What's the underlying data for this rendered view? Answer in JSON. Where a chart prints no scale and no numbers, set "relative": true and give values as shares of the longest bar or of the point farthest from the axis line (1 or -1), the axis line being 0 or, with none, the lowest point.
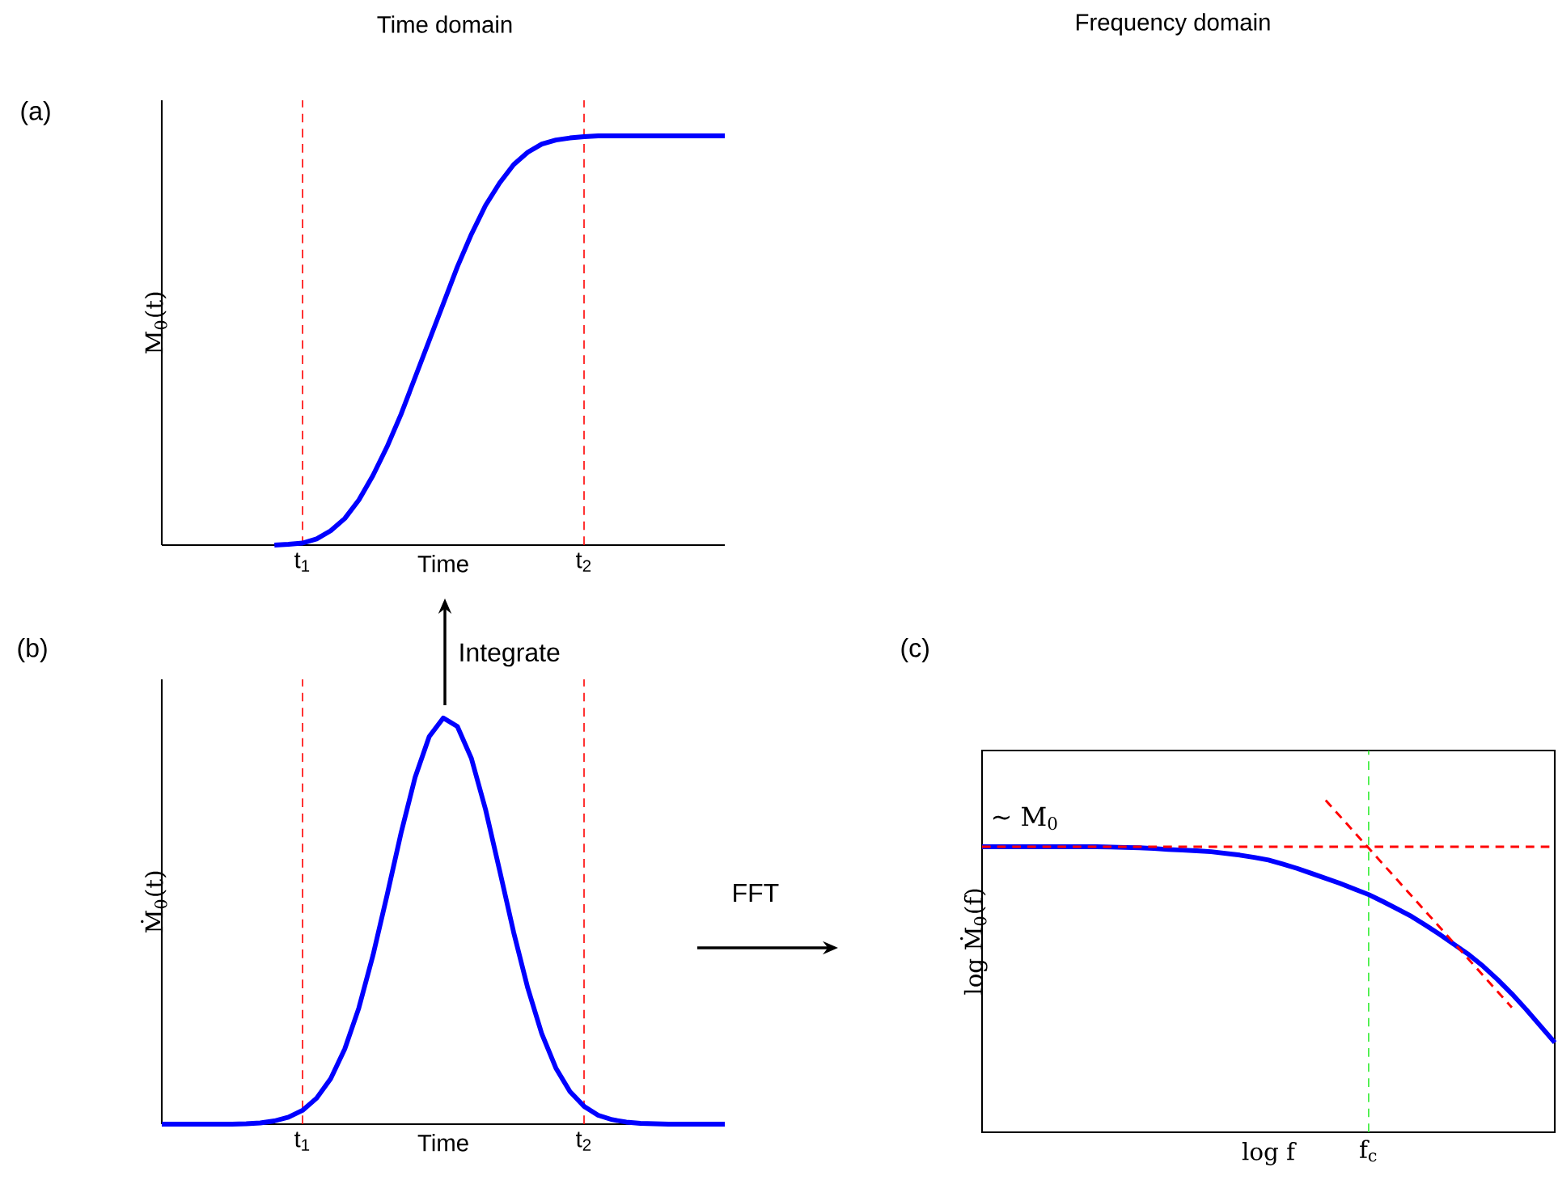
{
  "chart_data": [
    {
      "type": "line",
      "title": "Time domain",
      "ylabel": "M$_{0}$(t)",
      "xlabel": "Time",
      "relative": true,
      "categories": [
        null,
        null,
        null,
        null,
        null,
        null,
        null,
        null,
        null,
        null,
        "t$_{1}$",
        null,
        null,
        null,
        null,
        null,
        null,
        null,
        null,
        null,
        null,
        null,
        null,
        null,
        null,
        null,
        null,
        null,
        null,
        null,
        "t$_{2}$",
        null,
        null,
        null,
        null,
        null,
        null,
        null,
        null,
        null,
        null
      ],
      "ref_lines": [
        {
          "axis": "x",
          "value": "t$_{1}$",
          "color": "#ff0000",
          "line_style": "dashed"
        },
        {
          "axis": "x",
          "value": "t$_{2}$",
          "color": "#ff0000",
          "line_style": "dashed"
        }
      ],
      "annotations": [
        "(a)"
      ],
      "series": [
        {
          "color": "#0000ff",
          "line_style": "solid",
          "values": [
            null,
            null,
            null,
            null,
            null,
            null,
            null,
            null,
            0,
            0.002,
            0.005,
            0.015,
            0.035,
            0.065,
            0.11,
            0.17,
            0.24,
            0.32,
            0.41,
            0.5,
            0.59,
            0.68,
            0.76,
            0.83,
            0.885,
            0.93,
            0.96,
            0.98,
            0.99,
            0.995,
            0.998,
            1,
            1,
            1,
            1,
            1,
            1,
            1,
            1,
            1,
            1
          ]
        }
      ]
    },
    {
      "type": "line",
      "ylabel": "Ṁ$_{0}$(t)",
      "xlabel": "Time",
      "relative": true,
      "categories": [
        null,
        null,
        null,
        null,
        null,
        null,
        null,
        null,
        null,
        null,
        "t$_{1}$",
        null,
        null,
        null,
        null,
        null,
        null,
        null,
        null,
        null,
        null,
        null,
        null,
        null,
        null,
        null,
        null,
        null,
        null,
        null,
        "t$_{2}$",
        null,
        null,
        null,
        null,
        null,
        null,
        null,
        null,
        null,
        null
      ],
      "ref_lines": [
        {
          "axis": "x",
          "value": "t$_{1}$",
          "color": "#ff0000",
          "line_style": "dashed"
        },
        {
          "axis": "x",
          "value": "t$_{2}$",
          "color": "#ff0000",
          "line_style": "dashed"
        }
      ],
      "annotations": [
        "(b)",
        "Integrate",
        "FFT"
      ],
      "series": [
        {
          "color": "#0000ff",
          "line_style": "solid",
          "values": [
            0,
            0,
            0,
            0,
            0,
            0,
            0.001,
            0.003,
            0.008,
            0.017,
            0.034,
            0.064,
            0.112,
            0.185,
            0.286,
            0.415,
            0.563,
            0.717,
            0.854,
            0.954,
            1,
            0.979,
            0.9,
            0.775,
            0.625,
            0.472,
            0.335,
            0.222,
            0.138,
            0.08,
            0.044,
            0.022,
            0.011,
            0.005,
            0.002,
            0.001,
            0,
            0,
            0,
            0,
            0
          ]
        }
      ]
    },
    {
      "type": "line",
      "title": "Frequency domain",
      "ylabel": "log Ṁ$_{0}$(f)",
      "xlabel": "log f",
      "relative": true,
      "categories": [
        null,
        null,
        null,
        null,
        null,
        null,
        null,
        null,
        null,
        null,
        null,
        null,
        null,
        null,
        null,
        null,
        null,
        null,
        null,
        null,
        null,
        null,
        null,
        null,
        null,
        null,
        null,
        null,
        null,
        null,
        null,
        null,
        null,
        null,
        null,
        null,
        null,
        null,
        null,
        null,
        null
      ],
      "annotations": [
        "(c)",
        "~ M$_{0}$",
        "f$_{c}$"
      ],
      "series": [
        {
          "color": "#0000ff",
          "line_style": "solid",
          "values": [
            0.86,
            0.86,
            0.86,
            0.86,
            0.86,
            0.86,
            0.86,
            0.86,
            0.86,
            0.859,
            0.858,
            0.857,
            0.855,
            0.852,
            0.85,
            0.848,
            0.845,
            0.84,
            0.835,
            0.828,
            0.82,
            0.808,
            0.795,
            0.78,
            0.765,
            0.75,
            0.733,
            0.716,
            0.695,
            0.673,
            0.65,
            0.623,
            0.595,
            0.565,
            0.535,
            0.5,
            0.46,
            0.417,
            0.37,
            0.32,
            0.27
          ]
        },
        {
          "color": "#ff0000",
          "line_style": "dashed",
          "values": [
            0.86,
            0.86,
            0.86,
            0.86,
            0.86,
            0.86,
            0.86,
            0.86,
            0.86,
            0.86,
            0.86,
            0.86,
            0.86,
            0.86,
            0.86,
            0.86,
            0.86,
            0.86,
            0.86,
            0.86,
            0.86,
            0.86,
            0.86,
            0.86,
            0.86,
            0.86,
            0.86,
            0.86,
            0.86,
            0.86,
            0.86,
            0.86,
            0.86,
            0.86,
            0.86,
            0.86,
            0.86,
            0.86,
            0.86,
            0.86,
            0.86
          ]
        },
        {
          "color": "#ff0000",
          "line_style": "dashed",
          "values": [
            null,
            null,
            null,
            null,
            null,
            null,
            null,
            null,
            null,
            null,
            null,
            null,
            null,
            null,
            null,
            null,
            null,
            null,
            null,
            null,
            null,
            null,
            null,
            null,
            1,
            0.952,
            0.904,
            0.856,
            0.808,
            0.76,
            0.712,
            0.664,
            0.616,
            0.568,
            0.52,
            0.472,
            0.424,
            0.376,
            null,
            null,
            null
          ]
        }
      ]
    }
  ]
}
